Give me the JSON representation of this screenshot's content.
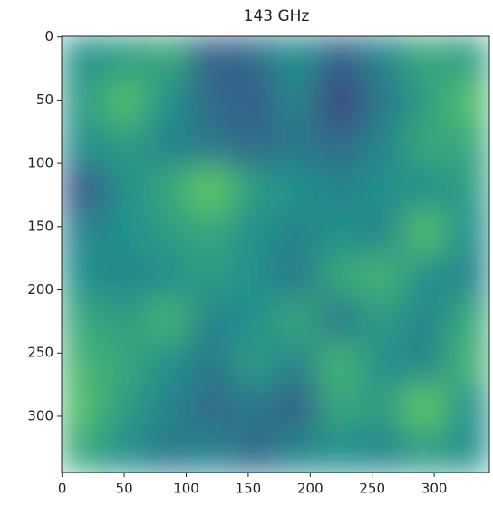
{
  "chart_data": {
    "type": "image",
    "title": "143 GHz",
    "colormap": "viridis",
    "xlim": [
      -0.5,
      344.5
    ],
    "ylim": [
      344.5,
      -0.5
    ],
    "xticks": [
      0,
      50,
      100,
      150,
      200,
      250,
      300
    ],
    "yticks": [
      0,
      50,
      100,
      150,
      200,
      250,
      300
    ],
    "values": [
      [
        0.5,
        0.55,
        0.6,
        0.3,
        0.35,
        0.5,
        0.3,
        0.45,
        0.6,
        0.55
      ],
      [
        0.55,
        0.7,
        0.5,
        0.35,
        0.3,
        0.45,
        0.2,
        0.4,
        0.55,
        0.7
      ],
      [
        0.5,
        0.55,
        0.45,
        0.4,
        0.35,
        0.4,
        0.35,
        0.45,
        0.6,
        0.6
      ],
      [
        0.25,
        0.5,
        0.6,
        0.75,
        0.55,
        0.5,
        0.45,
        0.5,
        0.5,
        0.55
      ],
      [
        0.45,
        0.5,
        0.55,
        0.6,
        0.5,
        0.45,
        0.5,
        0.45,
        0.7,
        0.5
      ],
      [
        0.5,
        0.45,
        0.5,
        0.55,
        0.5,
        0.4,
        0.6,
        0.65,
        0.5,
        0.45
      ],
      [
        0.6,
        0.55,
        0.65,
        0.45,
        0.5,
        0.6,
        0.4,
        0.55,
        0.45,
        0.6
      ],
      [
        0.65,
        0.6,
        0.5,
        0.4,
        0.55,
        0.45,
        0.65,
        0.5,
        0.45,
        0.65
      ],
      [
        0.7,
        0.55,
        0.45,
        0.35,
        0.4,
        0.3,
        0.6,
        0.55,
        0.75,
        0.5
      ],
      [
        0.6,
        0.5,
        0.4,
        0.45,
        0.35,
        0.45,
        0.5,
        0.45,
        0.55,
        0.5
      ]
    ]
  }
}
